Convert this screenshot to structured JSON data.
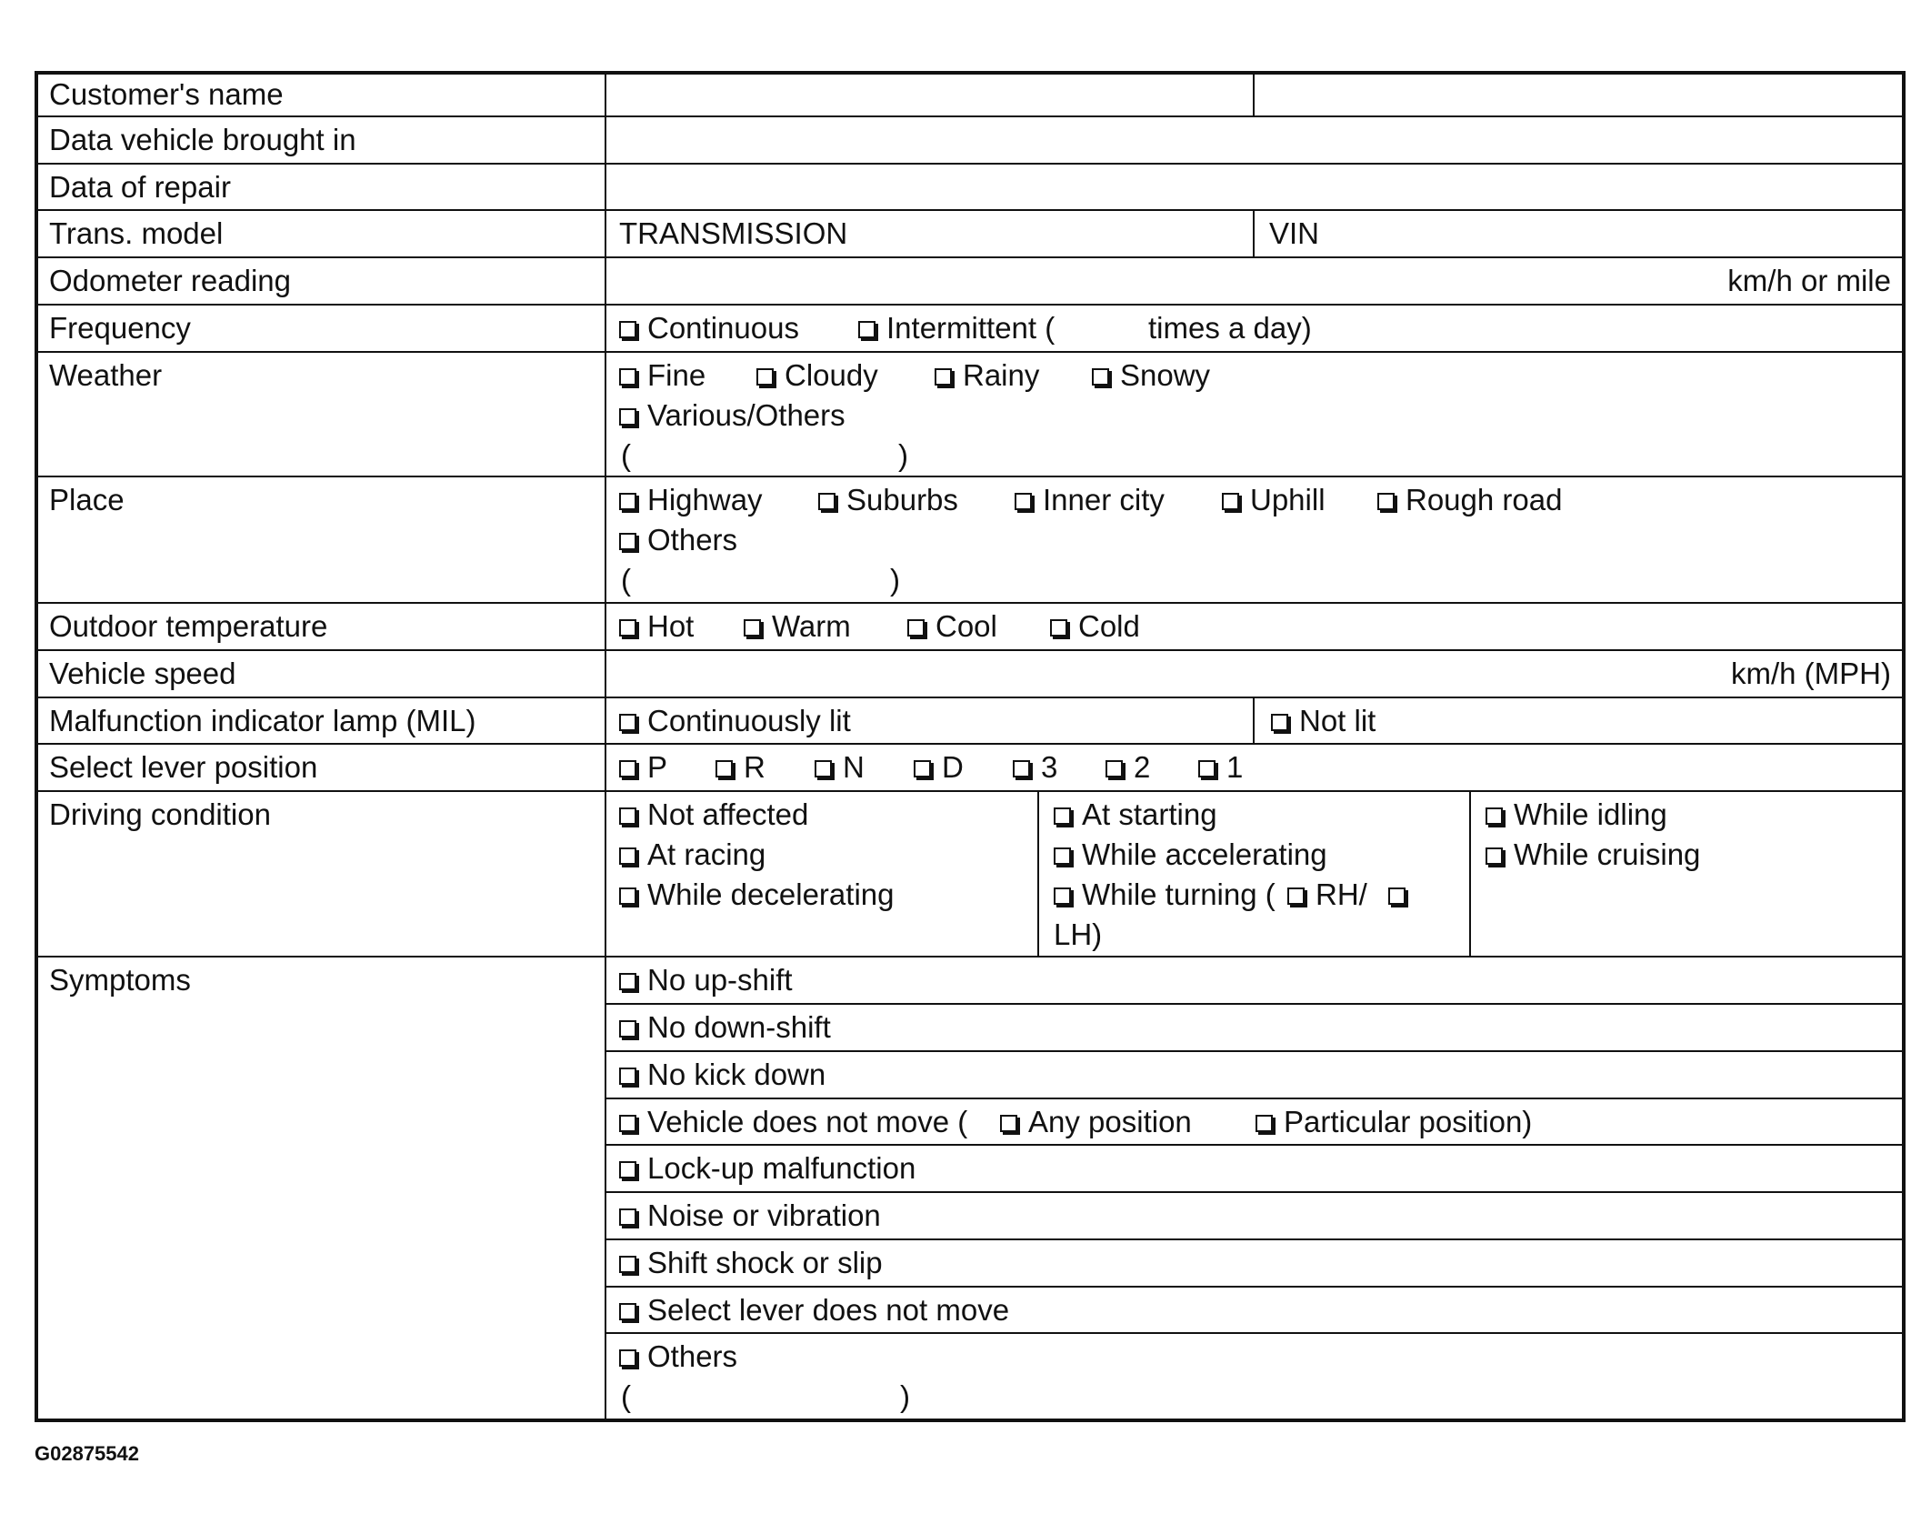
{
  "form": {
    "labels": [
      "Customer's name",
      "Data vehicle brought in",
      "Data of repair",
      "Trans. model",
      "Odometer reading",
      "Frequency",
      "Weather",
      "Place",
      "Outdoor temperature",
      "Vehicle speed",
      "Malfunction indicator lamp (MIL)",
      "Select lever position",
      "Driving condition",
      "Symptoms"
    ],
    "trans_model": {
      "value": "TRANSMISSION",
      "vin_label": "VIN"
    },
    "odometer_unit": "km/h or mile",
    "frequency": {
      "options": [
        "Continuous",
        "Intermittent ("
      ],
      "suffix": "times a day)"
    },
    "weather": {
      "options": [
        "Fine",
        "Cloudy",
        "Rainy",
        "Snowy",
        "Various/Others"
      ],
      "paren_open": "(",
      "paren_close": ")"
    },
    "place": {
      "options": [
        "Highway",
        "Suburbs",
        "Inner city",
        "Uphill",
        "Rough road",
        "Others"
      ],
      "paren_open": "(",
      "paren_close": ")"
    },
    "outdoor_temperature": {
      "options": [
        "Hot",
        "Warm",
        "Cool",
        "Cold"
      ]
    },
    "vehicle_speed_unit": "km/h (MPH)",
    "mil": {
      "options": [
        "Continuously lit",
        "Not lit"
      ]
    },
    "select_lever": {
      "options": [
        "P",
        "R",
        "N",
        "D",
        "3",
        "2",
        "1"
      ]
    },
    "driving_condition": {
      "options": [
        "Not affected",
        "At racing",
        "While decelerating",
        "At starting",
        "While accelerating",
        "While idling",
        "While cruising"
      ],
      "turning": {
        "text": "While turning (",
        "rh": "RH/",
        "lh": "LH)"
      }
    },
    "symptoms": {
      "options": [
        "No up-shift",
        "No down-shift",
        "No kick down",
        "Vehicle does not move (",
        "Lock-up malfunction",
        "Noise or vibration",
        "Shift shock or slip",
        "Select lever does not move",
        "Others"
      ],
      "sub_options": [
        "Any position",
        "Particular position)"
      ],
      "paren_open": "(",
      "paren_close": ")"
    }
  },
  "footer_code": "G02875542"
}
